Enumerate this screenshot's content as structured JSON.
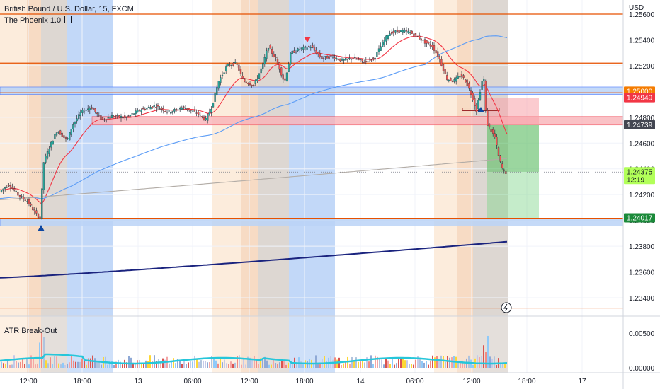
{
  "header": {
    "symbol_line": "British Pound / U.S. Dollar, 15, FXCM",
    "indicator_line": "The Phoenix 1.0",
    "indicator_icon": "settings-icon"
  },
  "price_scale": {
    "currency": "USD",
    "ticks": [
      "1.25600",
      "1.25400",
      "1.25200",
      "1.25000",
      "1.24800",
      "1.24600",
      "1.24400",
      "1.24200",
      "1.24000",
      "1.23800",
      "1.23600",
      "1.23400"
    ]
  },
  "price_tags": [
    {
      "value": "1.25000",
      "bg": "#f57c00",
      "fg": "#ffffff"
    },
    {
      "value": "1.24949",
      "bg": "#f23645",
      "fg": "#ffffff"
    },
    {
      "value": "1.24739",
      "bg": "#434651",
      "fg": "#ffffff"
    },
    {
      "value": "1.24375",
      "timer": "12:19",
      "bg": "#b2ff59",
      "fg": "#131722"
    },
    {
      "value": "1.24017",
      "bg": "#1b8a3a",
      "fg": "#ffffff"
    }
  ],
  "time_axis": [
    "12:00",
    "18:00",
    "13",
    "06:00",
    "12:00",
    "18:00",
    "14",
    "06:00",
    "12:00",
    "18:00",
    "17"
  ],
  "sub_pane": {
    "title": "ATR Break-Out",
    "ticks": [
      "0.00500",
      "0.00000"
    ]
  },
  "colors": {
    "support_zone": "#bbd4f7",
    "resistance_zone": "#f9b3b9",
    "key_line": "#e65100",
    "ema_fast": "#f23645",
    "ema_mid": "#5b9cf6",
    "sma_slow": "#b2aca6",
    "ema_long": "#1a237e",
    "candle_up": "#26a69a",
    "candle_down": "#ef5350",
    "atr_line": "#26c6da"
  },
  "chart_data": {
    "type": "candlestick",
    "symbol": "GBPUSD",
    "timeframe": "15",
    "ylim": [
      1.2328,
      1.2566
    ],
    "key_levels": [
      1.256,
      1.2522,
      1.2499,
      1.24017,
      1.2332
    ],
    "zones": [
      {
        "kind": "support",
        "from": 1.24977,
        "to": 1.25035
      },
      {
        "kind": "resistance",
        "from": 1.2474,
        "to": 1.24806
      },
      {
        "kind": "support",
        "from": 1.23957,
        "to": 1.24013
      }
    ],
    "trade_box": {
      "entry": 1.24739,
      "stop": 1.24949,
      "target": 1.24017
    },
    "last_price": 1.24375,
    "timer": "12:19",
    "session_boxes": true,
    "grid": true,
    "legend_position": "top-left"
  }
}
